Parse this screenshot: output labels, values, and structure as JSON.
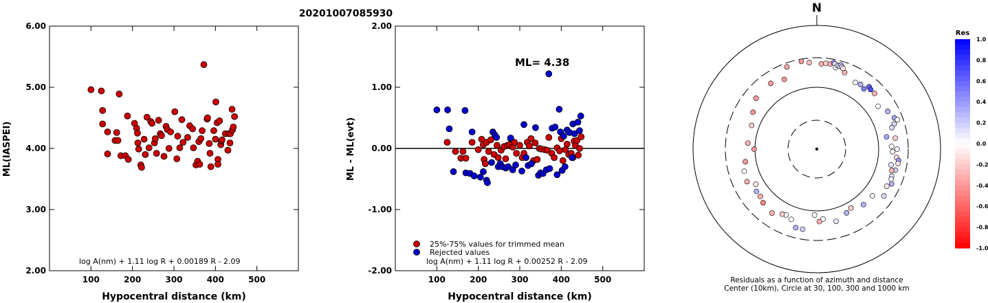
{
  "header": {
    "event_id": "20201007085930"
  },
  "chart_data": [
    {
      "type": "scatter",
      "xlabel": "Hypocentral distance (km)",
      "ylabel": "ML(IASPEI)",
      "xlim": [
        0,
        600
      ],
      "ylim": [
        2.0,
        6.0
      ],
      "xticks": [
        "100",
        "200",
        "300",
        "400",
        "500"
      ],
      "yticks": [
        "2.00",
        "3.00",
        "4.00",
        "5.00",
        "6.00"
      ],
      "formula": "log A(nm) + 1.11 log R + 0.00189 R - 2.09",
      "series": [
        {
          "color": "#cc0000",
          "points": [
            [
              100,
              4.96
            ],
            [
              125,
              4.94
            ],
            [
              128,
              4.62
            ],
            [
              128,
              4.4
            ],
            [
              140,
              4.27
            ],
            [
              140,
              3.91
            ],
            [
              158,
              4.13
            ],
            [
              162,
              4.26
            ],
            [
              165,
              4.13
            ],
            [
              168,
              4.89
            ],
            [
              172,
              3.88
            ],
            [
              183,
              3.88
            ],
            [
              188,
              4.53
            ],
            [
              190,
              3.82
            ],
            [
              205,
              4.41
            ],
            [
              210,
              4.33
            ],
            [
              212,
              4.25
            ],
            [
              213,
              4.09
            ],
            [
              215,
              3.99
            ],
            [
              220,
              3.73
            ],
            [
              222,
              3.69
            ],
            [
              228,
              4.15
            ],
            [
              231,
              3.9
            ],
            [
              235,
              4.51
            ],
            [
              240,
              4.01
            ],
            [
              244,
              4.44
            ],
            [
              247,
              4.41
            ],
            [
              253,
              4.09
            ],
            [
              255,
              4.16
            ],
            [
              258,
              3.92
            ],
            [
              263,
              4.46
            ],
            [
              267,
              4.24
            ],
            [
              270,
              4.21
            ],
            [
              276,
              3.87
            ],
            [
              281,
              4.36
            ],
            [
              284,
              4.31
            ],
            [
              288,
              4.0
            ],
            [
              292,
              4.27
            ],
            [
              302,
              4.6
            ],
            [
              307,
              3.83
            ],
            [
              309,
              4.2
            ],
            [
              314,
              4.01
            ],
            [
              319,
              4.47
            ],
            [
              322,
              4.1
            ],
            [
              333,
              4.18
            ],
            [
              338,
              4.37
            ],
            [
              345,
              4.32
            ],
            [
              347,
              4.01
            ],
            [
              353,
              3.73
            ],
            [
              357,
              3.79
            ],
            [
              360,
              4.11
            ],
            [
              362,
              3.74
            ],
            [
              365,
              4.16
            ],
            [
              368,
              4.29
            ],
            [
              372,
              5.37
            ],
            [
              380,
              4.48
            ],
            [
              381,
              4.5
            ],
            [
              385,
              4.08
            ],
            [
              387,
              3.92
            ],
            [
              389,
              3.7
            ],
            [
              396,
              4.29
            ],
            [
              400,
              4.15
            ],
            [
              401,
              4.76
            ],
            [
              404,
              4.42
            ],
            [
              406,
              3.82
            ],
            [
              406,
              3.74
            ],
            [
              410,
              4.45
            ],
            [
              413,
              4.06
            ],
            [
              414,
              4.12
            ],
            [
              416,
              4.14
            ],
            [
              424,
              4.24
            ],
            [
              430,
              3.97
            ],
            [
              432,
              4.24
            ],
            [
              435,
              4.09
            ],
            [
              436,
              4.24
            ],
            [
              440,
              4.64
            ],
            [
              441,
              4.3
            ],
            [
              443,
              4.35
            ],
            [
              446,
              4.52
            ]
          ]
        }
      ]
    },
    {
      "type": "scatter",
      "xlabel": "Hypocentral distance (km)",
      "ylabel": "ML - ML(evt)",
      "xlim": [
        0,
        600
      ],
      "ylim": [
        -2.0,
        2.0
      ],
      "xticks": [
        "100",
        "200",
        "300",
        "400",
        "500"
      ],
      "yticks": [
        "-2.00",
        "-1.00",
        "0.00",
        "1.00",
        "2.00"
      ],
      "annotation": "ML= 4.38",
      "formula": "log A(nm) + 1.11 log R + 0.00252 R - 2.09",
      "legend": [
        "25%-75% values for trimmed mean",
        "Rejected values"
      ],
      "legend_position": "bottom-left",
      "series": [
        {
          "name": "25%-75% values for trimmed mean",
          "color": "#cc0000",
          "points": [
            [
              125,
              0.1
            ],
            [
              145,
              -0.05
            ],
            [
              158,
              -0.16
            ],
            [
              163,
              -0.05
            ],
            [
              170,
              -0.16
            ],
            [
              185,
              0.1
            ],
            [
              200,
              -0.02
            ],
            [
              208,
              0.15
            ],
            [
              212,
              0.06
            ],
            [
              214,
              -0.18
            ],
            [
              217,
              -0.25
            ],
            [
              220,
              0.1
            ],
            [
              225,
              -0.05
            ],
            [
              230,
              0.14
            ],
            [
              238,
              -0.1
            ],
            [
              245,
              0.05
            ],
            [
              248,
              -0.15
            ],
            [
              255,
              -0.03
            ],
            [
              262,
              0.03
            ],
            [
              266,
              -0.17
            ],
            [
              270,
              0.05
            ],
            [
              275,
              0.06
            ],
            [
              278,
              0.16
            ],
            [
              283,
              0.02
            ],
            [
              287,
              0.1
            ],
            [
              292,
              -0.08
            ],
            [
              300,
              0.05
            ],
            [
              306,
              -0.15
            ],
            [
              310,
              -0.08
            ],
            [
              318,
              0.1
            ],
            [
              323,
              0.04
            ],
            [
              327,
              0.16
            ],
            [
              333,
              -0.2
            ],
            [
              337,
              0.09
            ],
            [
              342,
              -0.18
            ],
            [
              347,
              0.0
            ],
            [
              352,
              -0.01
            ],
            [
              360,
              -0.02
            ],
            [
              366,
              -0.03
            ],
            [
              370,
              0.18
            ],
            [
              377,
              -0.08
            ],
            [
              383,
              -0.15
            ],
            [
              390,
              0.01
            ],
            [
              396,
              -0.04
            ],
            [
              400,
              0.16
            ],
            [
              404,
              -0.2
            ],
            [
              410,
              -0.02
            ],
            [
              414,
              0.07
            ],
            [
              418,
              -0.1
            ],
            [
              424,
              -0.08
            ],
            [
              428,
              -0.15
            ],
            [
              431,
              0.12
            ],
            [
              434,
              0.05
            ],
            [
              438,
              0.13
            ],
            [
              441,
              -0.11
            ],
            [
              444,
              0.0
            ],
            [
              448,
              0.19
            ]
          ]
        },
        {
          "name": "Rejected values",
          "color": "#0000cc",
          "points": [
            [
              100,
              0.63
            ],
            [
              126,
              0.63
            ],
            [
              130,
              0.32
            ],
            [
              140,
              -0.38
            ],
            [
              168,
              0.62
            ],
            [
              170,
              -0.4
            ],
            [
              180,
              -0.41
            ],
            [
              185,
              0.27
            ],
            [
              190,
              -0.45
            ],
            [
              205,
              -0.47
            ],
            [
              212,
              -0.38
            ],
            [
              220,
              -0.52
            ],
            [
              222,
              -0.56
            ],
            [
              232,
              -0.23
            ],
            [
              235,
              0.27
            ],
            [
              240,
              0.22
            ],
            [
              244,
              0.18
            ],
            [
              248,
              -0.3
            ],
            [
              253,
              -0.25
            ],
            [
              258,
              -0.3
            ],
            [
              266,
              -0.32
            ],
            [
              272,
              -0.3
            ],
            [
              278,
              0.17
            ],
            [
              283,
              -0.35
            ],
            [
              290,
              -0.27
            ],
            [
              305,
              -0.37
            ],
            [
              310,
              0.39
            ],
            [
              315,
              -0.15
            ],
            [
              320,
              -0.28
            ],
            [
              328,
              -0.25
            ],
            [
              338,
              0.34
            ],
            [
              345,
              -0.44
            ],
            [
              350,
              -0.4
            ],
            [
              356,
              -0.41
            ],
            [
              364,
              -0.35
            ],
            [
              370,
              1.22
            ],
            [
              372,
              -0.33
            ],
            [
              378,
              0.33
            ],
            [
              385,
              0.35
            ],
            [
              390,
              -0.43
            ],
            [
              395,
              0.64
            ],
            [
              398,
              0.27
            ],
            [
              402,
              -0.36
            ],
            [
              406,
              0.2
            ],
            [
              409,
              -0.3
            ],
            [
              414,
              0.3
            ],
            [
              420,
              0.26
            ],
            [
              426,
              -0.15
            ],
            [
              428,
              0.4
            ],
            [
              432,
              0.24
            ],
            [
              440,
              0.43
            ],
            [
              444,
              0.29
            ],
            [
              447,
              0.53
            ]
          ]
        }
      ]
    },
    {
      "type": "scatter",
      "subtype": "polar",
      "north_label": "N",
      "caption_line1": "Residuals as a function of azimuth and distance",
      "caption_line2": "Center (10km), Circle at 30, 100, 300 and 1000 km",
      "colorbar_title": "Res",
      "colorbar_ticks": [
        "1.0",
        "0.8",
        "0.6",
        "0.4",
        "0.2",
        "0.0",
        "-0.2",
        "-0.4",
        "-0.6",
        "-0.8",
        "-1.0"
      ],
      "points": [
        [
          -20,
          398,
          -0.35
        ],
        [
          -10,
          405,
          -0.4
        ],
        [
          -5,
          395,
          -0.25
        ],
        [
          3,
          388,
          -0.3
        ],
        [
          6,
          392,
          -0.2
        ],
        [
          9,
          392,
          -0.3
        ],
        [
          11,
          400,
          0.4
        ],
        [
          12,
          396,
          0.1
        ],
        [
          13,
          380,
          0.05
        ],
        [
          14,
          392,
          0.05
        ],
        [
          15,
          392,
          0.1
        ],
        [
          16,
          398,
          0.3
        ],
        [
          17,
          390,
          0.0
        ],
        [
          18,
          386,
          -0.1
        ],
        [
          20,
          370,
          -0.3
        ],
        [
          30,
          350,
          0.05
        ],
        [
          34,
          355,
          0.3
        ],
        [
          38,
          348,
          0.5
        ],
        [
          40,
          370,
          0.6
        ],
        [
          42,
          365,
          0.7
        ],
        [
          46,
          365,
          -0.3
        ],
        [
          55,
          340,
          0.0
        ],
        [
          62,
          365,
          0.3
        ],
        [
          68,
          380,
          0.35
        ],
        [
          70,
          390,
          0.0
        ],
        [
          72,
          370,
          0.15
        ],
        [
          74,
          355,
          0.15
        ],
        [
          80,
          322,
          0.35
        ],
        [
          82,
          360,
          -0.2
        ],
        [
          88,
          340,
          0.0
        ],
        [
          90,
          365,
          0.05
        ],
        [
          92,
          345,
          -0.05
        ],
        [
          96,
          365,
          -0.15
        ],
        [
          98,
          375,
          0.4
        ],
        [
          100,
          375,
          -0.1
        ],
        [
          102,
          345,
          0.1
        ],
        [
          105,
          370,
          0.2
        ],
        [
          106,
          355,
          -0.3
        ],
        [
          110,
          362,
          0.1
        ],
        [
          112,
          365,
          0.05
        ],
        [
          115,
          375,
          0.3
        ],
        [
          118,
          360,
          -0.1
        ],
        [
          125,
          372,
          0.15
        ],
        [
          130,
          330,
          -0.05
        ],
        [
          140,
          330,
          0.3
        ],
        [
          150,
          310,
          -0.2
        ],
        [
          155,
          320,
          0.3
        ],
        [
          165,
          340,
          0.1
        ],
        [
          175,
          320,
          0.0
        ],
        [
          178,
          330,
          -0.3
        ],
        [
          182,
          300,
          0.0
        ],
        [
          190,
          370,
          0.2
        ],
        [
          195,
          370,
          0.3
        ],
        [
          200,
          340,
          0.0
        ],
        [
          205,
          330,
          0.0
        ],
        [
          208,
          335,
          -0.2
        ],
        [
          215,
          355,
          -0.3
        ],
        [
          225,
          345,
          -0.5
        ],
        [
          230,
          335,
          -0.3
        ],
        [
          235,
          335,
          0.3
        ],
        [
          240,
          320,
          -0.1
        ],
        [
          245,
          350,
          -0.3
        ],
        [
          253,
          345,
          0.0
        ],
        [
          260,
          330,
          -0.4
        ],
        [
          270,
          285,
          -0.4
        ],
        [
          275,
          315,
          -0.3
        ],
        [
          290,
          315,
          -0.2
        ],
        [
          300,
          335,
          -0.4
        ],
        [
          310,
          360,
          -0.4
        ],
        [
          325,
          365,
          -0.4
        ],
        [
          335,
          350,
          -0.4
        ]
      ]
    }
  ]
}
